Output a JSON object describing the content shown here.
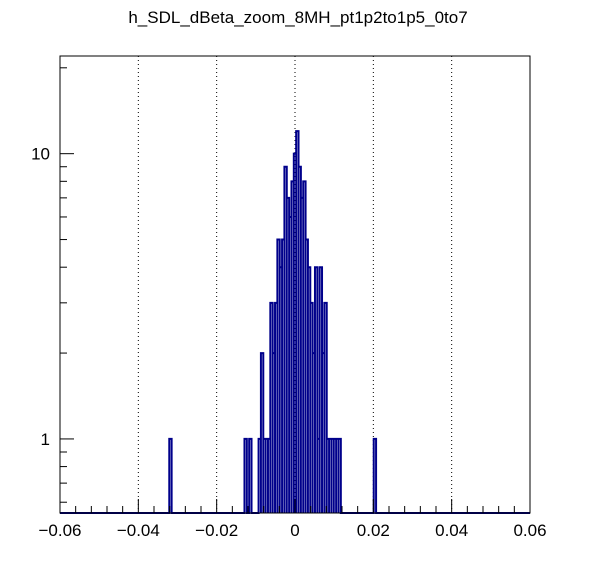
{
  "chart_data": {
    "type": "histogram",
    "title": "h_SDL_dBeta_zoom_8MH_pt1p2to1p5_0to7",
    "xlabel": "",
    "ylabel": "",
    "xlim": [
      -0.06,
      0.06
    ],
    "ylim": [
      0.55,
      22
    ],
    "y_scale": "log",
    "grid": "vertical dotted",
    "legend": "none",
    "line_color": "#00008b",
    "x_ticks": [
      {
        "value": -0.06,
        "label": "−0.06"
      },
      {
        "value": -0.04,
        "label": "−0.04"
      },
      {
        "value": -0.02,
        "label": "−0.02"
      },
      {
        "value": 0,
        "label": "0"
      },
      {
        "value": 0.02,
        "label": "0.02"
      },
      {
        "value": 0.04,
        "label": "0.04"
      },
      {
        "value": 0.06,
        "label": "0.06"
      }
    ],
    "y_ticks": [
      {
        "value": 1,
        "label": "1"
      },
      {
        "value": 10,
        "label": "10"
      }
    ],
    "bin_width": 0.0006,
    "bins": [
      [
        -0.0318,
        1
      ],
      [
        -0.0126,
        1
      ],
      [
        -0.0114,
        1
      ],
      [
        -0.009,
        1
      ],
      [
        -0.0084,
        2
      ],
      [
        -0.0078,
        1
      ],
      [
        -0.0072,
        1
      ],
      [
        -0.0066,
        1
      ],
      [
        -0.006,
        3
      ],
      [
        -0.0054,
        2
      ],
      [
        -0.0048,
        3
      ],
      [
        -0.0042,
        5
      ],
      [
        -0.0036,
        4
      ],
      [
        -0.003,
        5
      ],
      [
        -0.0024,
        9
      ],
      [
        -0.0018,
        7
      ],
      [
        -0.0012,
        6
      ],
      [
        -0.0006,
        8
      ],
      [
        0.0,
        10
      ],
      [
        0.0006,
        12
      ],
      [
        0.0012,
        9
      ],
      [
        0.0018,
        7
      ],
      [
        0.0024,
        8
      ],
      [
        0.003,
        5
      ],
      [
        0.0036,
        4
      ],
      [
        0.0042,
        3
      ],
      [
        0.0048,
        2
      ],
      [
        0.0054,
        4
      ],
      [
        0.006,
        1
      ],
      [
        0.0066,
        4
      ],
      [
        0.0072,
        2
      ],
      [
        0.0078,
        3
      ],
      [
        0.0084,
        1
      ],
      [
        0.009,
        1
      ],
      [
        0.0096,
        1
      ],
      [
        0.0102,
        1
      ],
      [
        0.0108,
        1
      ],
      [
        0.0114,
        1
      ],
      [
        0.0204,
        1
      ]
    ]
  }
}
